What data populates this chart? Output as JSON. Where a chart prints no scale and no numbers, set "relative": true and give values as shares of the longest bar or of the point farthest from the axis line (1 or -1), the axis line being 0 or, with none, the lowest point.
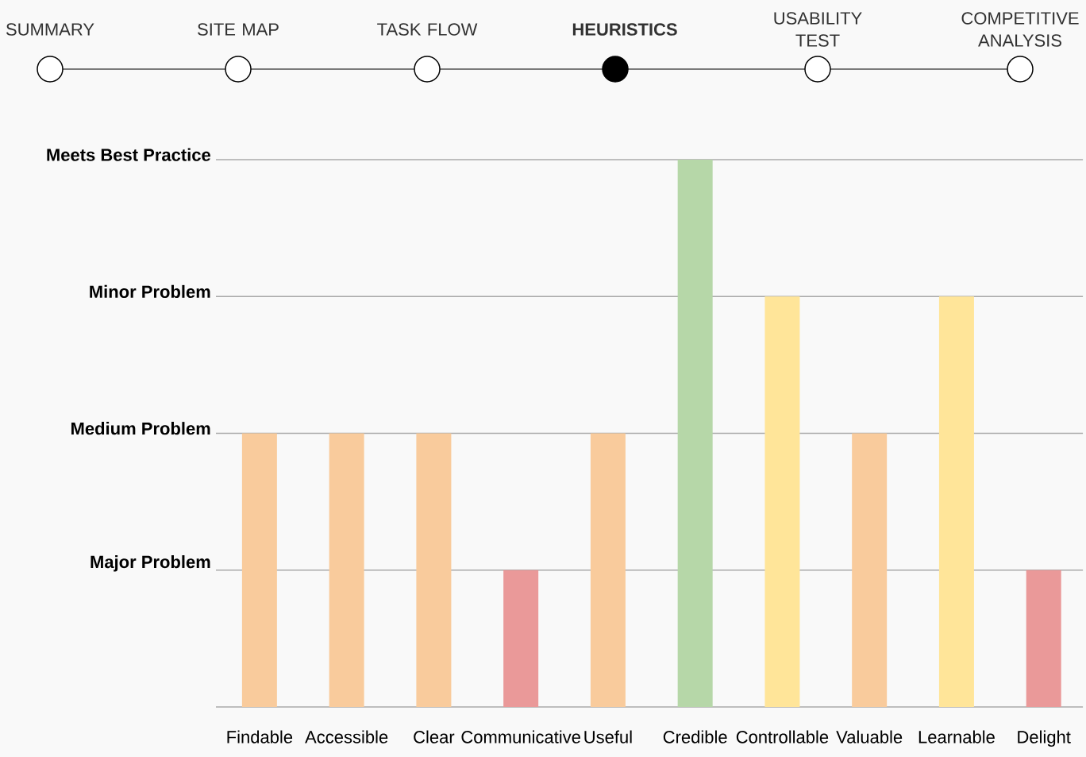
{
  "chart_data": {
    "type": "bar",
    "relative": true,
    "categories": [
      "Findable",
      "Accessible",
      "Clear",
      "Communicative",
      "Useful",
      "Credible",
      "Controllable",
      "Valuable",
      "Learnable",
      "Delight"
    ],
    "values": [
      0.5,
      0.5,
      0.5,
      0.25,
      0.5,
      1,
      0.75,
      0.5,
      0.75,
      0.25
    ],
    "colors": [
      "#f9cb9c",
      "#f9cb9c",
      "#f9cb9c",
      "#ea9999",
      "#f9cb9c",
      "#b6d7a8",
      "#ffe599",
      "#f9cb9c",
      "#ffe599",
      "#ea9999"
    ],
    "ref_lines": [
      {
        "axis": "y",
        "value": 0.25,
        "label": "Major Problem",
        "color": "#aaaaaa"
      },
      {
        "axis": "y",
        "value": 0.5,
        "label": "Medium Problem",
        "color": "#aaaaaa"
      },
      {
        "axis": "y",
        "value": 0.75,
        "label": "Minor Problem",
        "color": "#aaaaaa"
      },
      {
        "axis": "y",
        "value": 1,
        "label": "Meets Best Practice",
        "color": "#aaaaaa"
      }
    ],
    "annotations": [
      "SUMMARY",
      "SITE MAP",
      "TASK FLOW",
      "**HEURISTICS**",
      "USABILITY TEST",
      "COMPETITIVE ANALYSIS"
    ]
  }
}
